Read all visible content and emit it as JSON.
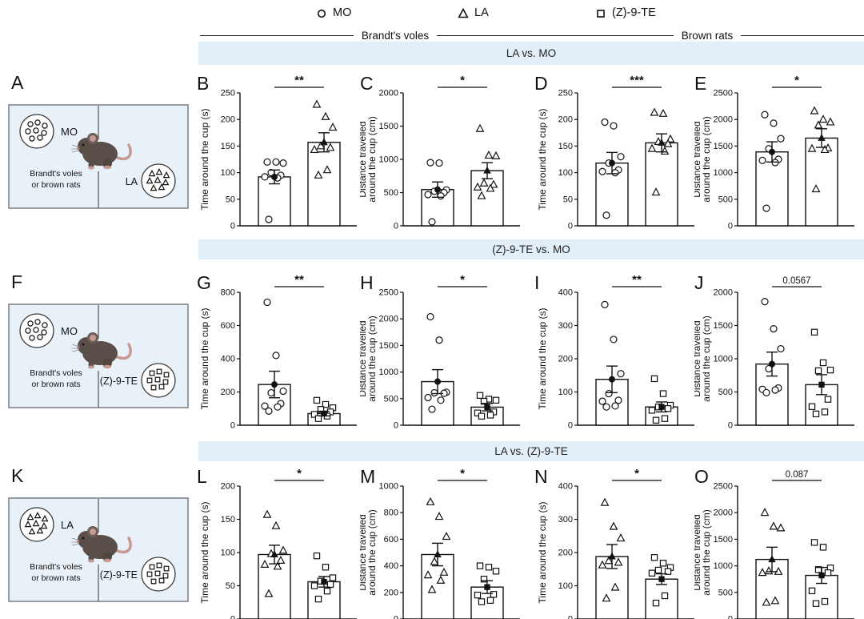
{
  "figure": {
    "legend": [
      {
        "marker": "circle",
        "label": "MO"
      },
      {
        "marker": "triangle",
        "label": "LA"
      },
      {
        "marker": "square",
        "label": "(Z)-9-TE"
      }
    ],
    "species_groups": [
      {
        "label": "Brandt's voles"
      },
      {
        "label": "Brown rats"
      }
    ],
    "banners": [
      "LA vs. MO",
      "(Z)-9-TE vs. MO",
      "LA vs. (Z)-9-TE"
    ],
    "schematics": [
      {
        "letter": "A",
        "top_left": {
          "label": "MO",
          "marker": "circle"
        },
        "bottom_right": {
          "label": "LA",
          "marker": "triangle"
        },
        "caption_line1": "Brandt's voles",
        "caption_line2": "or brown rats"
      },
      {
        "letter": "F",
        "top_left": {
          "label": "MO",
          "marker": "circle"
        },
        "bottom_right": {
          "label": "(Z)-9-TE",
          "marker": "square"
        },
        "caption_line1": "Brandt's voles",
        "caption_line2": "or brown rats"
      },
      {
        "letter": "K",
        "top_left": {
          "label": "LA",
          "marker": "triangle"
        },
        "bottom_right": {
          "label": "(Z)-9-TE",
          "marker": "square"
        },
        "caption_line1": "Brandt's voles",
        "caption_line2": "or brown rats"
      }
    ],
    "colors": {
      "banner_bg": "#e2eef8",
      "arena_bg": "#e9f1f8",
      "arena_border": "#80868c",
      "ink": "#111111",
      "mouse_body": "#5a4f48",
      "mouse_pink": "#c79a93"
    }
  },
  "chart_data": [
    {
      "panel": "B",
      "type": "bar",
      "section": "LA vs. MO",
      "group": "Brandt's voles",
      "ylabel_lines": [
        "Time around the cup (s)"
      ],
      "ylim": [
        0,
        250
      ],
      "ytick": 50,
      "sig": "**",
      "series": [
        {
          "name": "MO",
          "marker": "circle",
          "mean": 92,
          "sem": 13,
          "points": [
            120,
            120,
            118,
            100,
            95,
            92,
            90,
            12
          ]
        },
        {
          "name": "LA",
          "marker": "triangle",
          "mean": 157,
          "sem": 18,
          "points": [
            228,
            205,
            185,
            150,
            147,
            143,
            105,
            95
          ]
        }
      ]
    },
    {
      "panel": "C",
      "type": "bar",
      "section": "LA vs. MO",
      "group": "Brandt's voles",
      "ylabel_lines": [
        "Distance travelled",
        "around the cup (cm)"
      ],
      "ylim": [
        0,
        2000
      ],
      "ytick": 500,
      "sig": "*",
      "series": [
        {
          "name": "MO",
          "marker": "circle",
          "mean": 545,
          "sem": 115,
          "points": [
            950,
            945,
            540,
            520,
            500,
            470,
            450,
            60
          ]
        },
        {
          "name": "LA",
          "marker": "triangle",
          "mean": 830,
          "sem": 120,
          "points": [
            1460,
            1060,
            1050,
            640,
            620,
            580,
            560,
            450
          ]
        }
      ]
    },
    {
      "panel": "D",
      "type": "bar",
      "section": "LA vs. MO",
      "group": "Brown rats",
      "ylabel_lines": [
        "Time around the cup (s)"
      ],
      "ylim": [
        0,
        250
      ],
      "ytick": 50,
      "sig": "***",
      "series": [
        {
          "name": "MO",
          "marker": "circle",
          "mean": 118,
          "sem": 20,
          "points": [
            195,
            188,
            130,
            118,
            105,
            102,
            100,
            20
          ]
        },
        {
          "name": "LA",
          "marker": "triangle",
          "mean": 156,
          "sem": 17,
          "points": [
            213,
            211,
            163,
            158,
            154,
            145,
            140,
            63
          ]
        }
      ]
    },
    {
      "panel": "E",
      "type": "bar",
      "section": "LA vs. MO",
      "group": "Brown rats",
      "ylabel_lines": [
        "Distance travelled",
        "around the cup (cm)"
      ],
      "ylim": [
        0,
        2500
      ],
      "ytick": 500,
      "sig": "*",
      "series": [
        {
          "name": "MO",
          "marker": "circle",
          "mean": 1390,
          "sem": 190,
          "points": [
            2090,
            1930,
            1640,
            1450,
            1250,
            1230,
            1190,
            330
          ]
        },
        {
          "name": "LA",
          "marker": "triangle",
          "mean": 1650,
          "sem": 175,
          "points": [
            2160,
            2000,
            1950,
            1890,
            1460,
            1450,
            1430,
            690
          ]
        }
      ]
    },
    {
      "panel": "G",
      "type": "bar",
      "section": "(Z)-9-TE vs. MO",
      "group": "Brandt's voles",
      "ylabel_lines": [
        "Time around the cup (s)"
      ],
      "ylim": [
        0,
        800
      ],
      "ytick": 200,
      "sig": "**",
      "series": [
        {
          "name": "MO",
          "marker": "circle",
          "mean": 245,
          "sem": 80,
          "points": [
            740,
            420,
            205,
            195,
            130,
            115,
            110,
            85
          ]
        },
        {
          "name": "(Z)-9-TE",
          "marker": "square",
          "mean": 70,
          "sem": 14,
          "points": [
            150,
            125,
            105,
            95,
            80,
            65,
            55,
            40
          ]
        }
      ]
    },
    {
      "panel": "H",
      "type": "bar",
      "section": "(Z)-9-TE vs. MO",
      "group": "Brandt's voles",
      "ylabel_lines": [
        "Distance travelled",
        "around the cup (cm)"
      ],
      "ylim": [
        0,
        2500
      ],
      "ytick": 500,
      "sig": "*",
      "series": [
        {
          "name": "MO",
          "marker": "circle",
          "mean": 820,
          "sem": 225,
          "points": [
            2040,
            1600,
            620,
            610,
            600,
            520,
            470,
            300
          ]
        },
        {
          "name": "(Z)-9-TE",
          "marker": "square",
          "mean": 340,
          "sem": 70,
          "points": [
            560,
            490,
            470,
            450,
            250,
            230,
            190,
            170
          ]
        }
      ]
    },
    {
      "panel": "I",
      "type": "bar",
      "section": "(Z)-9-TE vs. MO",
      "group": "Brown rats",
      "ylabel_lines": [
        "Time around the cup (s)"
      ],
      "ylim": [
        0,
        400
      ],
      "ytick": 100,
      "sig": "**",
      "series": [
        {
          "name": "MO",
          "marker": "circle",
          "mean": 138,
          "sem": 40,
          "points": [
            363,
            258,
            155,
            95,
            75,
            72,
            58,
            55
          ]
        },
        {
          "name": "(Z)-9-TE",
          "marker": "square",
          "mean": 55,
          "sem": 15,
          "points": [
            140,
            95,
            60,
            55,
            50,
            45,
            20,
            15
          ]
        }
      ]
    },
    {
      "panel": "J",
      "type": "bar",
      "section": "(Z)-9-TE vs. MO",
      "group": "Brown rats",
      "ylabel_lines": [
        "Distance travelled",
        "around the cup (cm)"
      ],
      "ylim": [
        0,
        2000
      ],
      "ytick": 500,
      "sig": "0.0567",
      "series": [
        {
          "name": "MO",
          "marker": "circle",
          "mean": 920,
          "sem": 180,
          "points": [
            1860,
            1450,
            1150,
            850,
            560,
            540,
            530,
            490
          ]
        },
        {
          "name": "(Z)-9-TE",
          "marker": "square",
          "mean": 610,
          "sem": 150,
          "points": [
            1400,
            940,
            830,
            820,
            390,
            280,
            200,
            170
          ]
        }
      ]
    },
    {
      "panel": "L",
      "type": "bar",
      "section": "LA vs. (Z)-9-TE",
      "group": "Brandt's voles",
      "ylabel_lines": [
        "Time around the cup (s)"
      ],
      "ylim": [
        0,
        200
      ],
      "ytick": 50,
      "sig": "*",
      "series": [
        {
          "name": "LA",
          "marker": "triangle",
          "mean": 97,
          "sem": 14,
          "points": [
            157,
            140,
            103,
            98,
            88,
            82,
            79,
            38
          ]
        },
        {
          "name": "(Z)-9-TE",
          "marker": "square",
          "mean": 56,
          "sem": 8,
          "points": [
            95,
            78,
            62,
            57,
            52,
            50,
            42,
            30
          ]
        }
      ]
    },
    {
      "panel": "M",
      "type": "bar",
      "section": "LA vs. (Z)-9-TE",
      "group": "Brandt's voles",
      "ylabel_lines": [
        "Distance travelled",
        "around the cup (cm)"
      ],
      "ylim": [
        0,
        1000
      ],
      "ytick": 200,
      "sig": "*",
      "series": [
        {
          "name": "LA",
          "marker": "triangle",
          "mean": 485,
          "sem": 85,
          "points": [
            880,
            770,
            620,
            430,
            350,
            330,
            290,
            220
          ]
        },
        {
          "name": "(Z)-9-TE",
          "marker": "square",
          "mean": 240,
          "sem": 48,
          "points": [
            400,
            390,
            360,
            300,
            185,
            180,
            140,
            130
          ]
        }
      ]
    },
    {
      "panel": "N",
      "type": "bar",
      "section": "LA vs. (Z)-9-TE",
      "group": "Brown rats",
      "ylabel_lines": [
        "Time around the cup (s)"
      ],
      "ylim": [
        0,
        400
      ],
      "ytick": 100,
      "sig": "*",
      "series": [
        {
          "name": "LA",
          "marker": "triangle",
          "mean": 188,
          "sem": 36,
          "points": [
            350,
            278,
            243,
            175,
            170,
            162,
            95,
            62
          ]
        },
        {
          "name": "(Z)-9-TE",
          "marker": "square",
          "mean": 120,
          "sem": 16,
          "points": [
            185,
            168,
            155,
            147,
            143,
            138,
            70,
            48
          ]
        }
      ]
    },
    {
      "panel": "O",
      "type": "bar",
      "section": "LA vs. (Z)-9-TE",
      "group": "Brown rats",
      "ylabel_lines": [
        "Distance travelled",
        "around the cup (cm)"
      ],
      "ylim": [
        0,
        2500
      ],
      "ytick": 500,
      "sig": "0.087",
      "series": [
        {
          "name": "LA",
          "marker": "triangle",
          "mean": 1120,
          "sem": 230,
          "points": [
            2000,
            1740,
            1710,
            900,
            890,
            870,
            340,
            310
          ]
        },
        {
          "name": "(Z)-9-TE",
          "marker": "square",
          "mean": 820,
          "sem": 150,
          "points": [
            1440,
            1350,
            960,
            930,
            870,
            530,
            330,
            290
          ]
        }
      ]
    }
  ]
}
